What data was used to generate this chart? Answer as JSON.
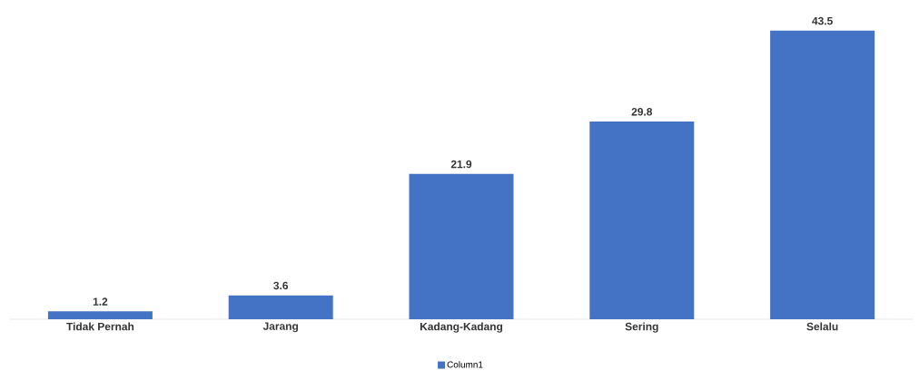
{
  "chart_data": {
    "type": "bar",
    "categories": [
      "Tidak Pernah",
      "Jarang",
      "Kadang-Kadang",
      "Sering",
      "Selalu"
    ],
    "series": [
      {
        "name": "Column1",
        "color": "#4472c4",
        "values": [
          1.2,
          3.6,
          21.9,
          29.8,
          43.5
        ]
      }
    ],
    "data_labels": true,
    "legend": "bottom"
  }
}
